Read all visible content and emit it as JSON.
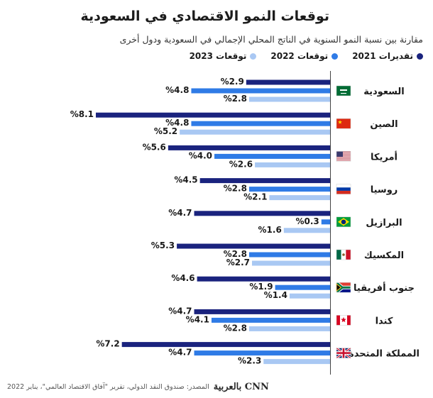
{
  "title": "توقعات النمو الاقتصادي في السعودية",
  "subtitle": "مقارنة بين نسبة النمو السنوية في الناتج المحلي الإجمالي في السعودية ودول أخرى",
  "source": "المصدر: صندوق النقد الدولي، تقرير \"آفاق الاقتصاد العالمي\"، يناير 2022",
  "logo": "CNN بالعربية",
  "colors": {
    "s2021": "#1a237e",
    "s2022": "#2f7be6",
    "s2023": "#a9c8f3"
  },
  "chart_data": {
    "type": "bar",
    "orientation": "horizontal",
    "value_format": "%",
    "categories": [
      "السعودية",
      "الصين",
      "أمريكا",
      "روسيا",
      "البرازيل",
      "المكسيك",
      "جنوب أفريقيا",
      "كندا",
      "المملكة المتحدة"
    ],
    "flags": [
      "saudi-flag-icon",
      "china-flag-icon",
      "usa-flag-icon",
      "russia-flag-icon",
      "brazil-flag-icon",
      "mexico-flag-icon",
      "south-africa-flag-icon",
      "canada-flag-icon",
      "uk-flag-icon"
    ],
    "series": [
      {
        "name": "تقديرات 2021",
        "values": [
          2.9,
          8.1,
          5.6,
          4.5,
          4.7,
          5.3,
          4.6,
          4.7,
          7.2
        ]
      },
      {
        "name": "توقعات 2022",
        "values": [
          4.8,
          4.8,
          4.0,
          2.8,
          0.3,
          2.8,
          1.9,
          4.1,
          4.7
        ]
      },
      {
        "name": "توقعات 2023",
        "values": [
          2.8,
          5.2,
          2.6,
          2.1,
          1.6,
          2.7,
          1.4,
          2.8,
          2.3
        ]
      }
    ],
    "xlim": [
      0,
      8.1
    ],
    "legend_position": "top-right",
    "grid": false
  }
}
